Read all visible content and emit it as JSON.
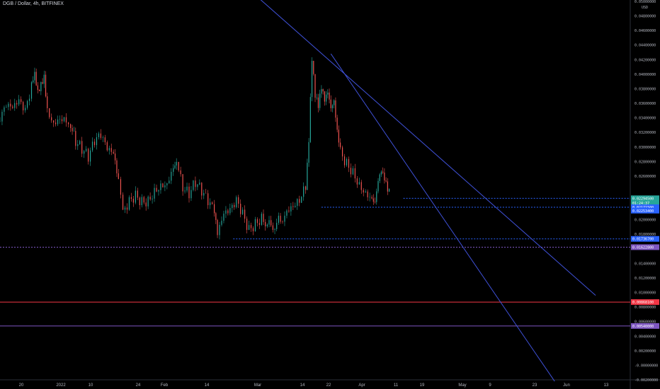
{
  "header": {
    "title": "DGB / Dollar, 4h, BITFINEX"
  },
  "colors": {
    "background": "#000000",
    "up": "#26a69a",
    "down": "#ef5350",
    "trendline": "#3f51d8",
    "level_blue": "#2962ff",
    "level_purple": "#7e57c2",
    "level_red": "#f23645",
    "axis_text": "#b2b5be"
  },
  "chart_data": {
    "type": "candlestick",
    "title": "DGB / Dollar, 4h, BITFINEX",
    "currency_label": "USD",
    "ylim": [
      -0.002,
      0.05
    ],
    "y_ticks": [
      "0.05000000",
      "0.04800000",
      "0.04600000",
      "0.04400000",
      "0.04200000",
      "0.04000000",
      "0.03800000",
      "0.03600000",
      "0.03400000",
      "0.03200000",
      "0.03000000",
      "0.02800000",
      "0.02600000",
      "0.02200000",
      "0.02000000",
      "0.01800000",
      "0.01400000",
      "0.01200000",
      "0.01000000",
      "0.00800000",
      "0.00600000",
      "0.00400000",
      "0.00200000",
      "-0.00000000",
      "-0.00200000"
    ],
    "x_ticks": [
      "20",
      "2022",
      "10",
      "24",
      "Feb",
      "14",
      "Mar",
      "14",
      "22",
      "Apr",
      "11",
      "19",
      "May",
      "9",
      "23",
      "Jun",
      "13"
    ],
    "price_tags": [
      {
        "label": "0.02294500",
        "value": 0.022945,
        "color": "#26a69a"
      },
      {
        "label": "01:24:37",
        "value": 0.0223,
        "color": "#26a69a"
      },
      {
        "label": "0.02171500",
        "value": 0.021715,
        "color": "#2962ff"
      },
      {
        "label": "0.02253400",
        "value": 0.02125,
        "color": "#2962ff"
      },
      {
        "label": "0.01736700",
        "value": 0.017367,
        "color": "#2962ff"
      },
      {
        "label": "0.01622800",
        "value": 0.016228,
        "color": "#7e57c2"
      },
      {
        "label": "0.00868100",
        "value": 0.008681,
        "color": "#f23645"
      },
      {
        "label": "0.00540000",
        "value": 0.0054,
        "color": "#7e57c2"
      }
    ],
    "horizontal_levels": [
      {
        "value": 0.022945,
        "style": "dotted",
        "color": "#2962ff",
        "from": "Apr 19"
      },
      {
        "value": 0.021715,
        "style": "dotted",
        "color": "#2962ff",
        "from": "Mar 22"
      },
      {
        "value": 0.017367,
        "style": "dotted",
        "color": "#2962ff",
        "from": "Feb 28"
      },
      {
        "value": 0.016228,
        "style": "dotted",
        "color": "#7e57c2",
        "from": "Dec 15"
      },
      {
        "value": 0.008681,
        "style": "solid",
        "color": "#f23645",
        "from": "Dec 15"
      },
      {
        "value": 0.0054,
        "style": "solid",
        "color": "#7e57c2",
        "from": "Dec 15"
      }
    ],
    "trendlines": [
      {
        "from": {
          "t": 0.41,
          "v": 0.0505
        },
        "to": {
          "t": 0.945,
          "v": 0.0096
        }
      },
      {
        "from": {
          "t": 0.525,
          "v": 0.0428
        },
        "to": {
          "t": 0.88,
          "v": -0.0022
        }
      }
    ],
    "price_path": [
      [
        0.0,
        0.0335
      ],
      [
        0.01,
        0.0352
      ],
      [
        0.02,
        0.0348
      ],
      [
        0.03,
        0.0358
      ],
      [
        0.04,
        0.0345
      ],
      [
        0.05,
        0.038
      ],
      [
        0.055,
        0.0395
      ],
      [
        0.06,
        0.0372
      ],
      [
        0.065,
        0.0385
      ],
      [
        0.07,
        0.0398
      ],
      [
        0.075,
        0.0355
      ],
      [
        0.085,
        0.0338
      ],
      [
        0.095,
        0.0345
      ],
      [
        0.105,
        0.0342
      ],
      [
        0.112,
        0.0335
      ],
      [
        0.12,
        0.031
      ],
      [
        0.13,
        0.0298
      ],
      [
        0.14,
        0.0285
      ],
      [
        0.15,
        0.0305
      ],
      [
        0.16,
        0.0312
      ],
      [
        0.17,
        0.0292
      ],
      [
        0.18,
        0.0285
      ],
      [
        0.188,
        0.0248
      ],
      [
        0.195,
        0.0205
      ],
      [
        0.205,
        0.0222
      ],
      [
        0.215,
        0.0232
      ],
      [
        0.225,
        0.0225
      ],
      [
        0.235,
        0.0228
      ],
      [
        0.245,
        0.0243
      ],
      [
        0.255,
        0.0252
      ],
      [
        0.265,
        0.0255
      ],
      [
        0.275,
        0.0278
      ],
      [
        0.28,
        0.0288
      ],
      [
        0.29,
        0.0248
      ],
      [
        0.3,
        0.0238
      ],
      [
        0.31,
        0.0252
      ],
      [
        0.32,
        0.0238
      ],
      [
        0.33,
        0.0222
      ],
      [
        0.34,
        0.0208
      ],
      [
        0.345,
        0.0175
      ],
      [
        0.355,
        0.0202
      ],
      [
        0.365,
        0.0208
      ],
      [
        0.375,
        0.0222
      ],
      [
        0.385,
        0.0205
      ],
      [
        0.395,
        0.0185
      ],
      [
        0.405,
        0.0195
      ],
      [
        0.415,
        0.0205
      ],
      [
        0.43,
        0.0192
      ],
      [
        0.445,
        0.02
      ],
      [
        0.455,
        0.0218
      ],
      [
        0.465,
        0.0225
      ],
      [
        0.475,
        0.0232
      ],
      [
        0.485,
        0.025
      ],
      [
        0.49,
        0.0315
      ],
      [
        0.495,
        0.0425
      ],
      [
        0.5,
        0.0372
      ],
      [
        0.505,
        0.0355
      ],
      [
        0.51,
        0.0378
      ],
      [
        0.515,
        0.0358
      ],
      [
        0.52,
        0.0368
      ],
      [
        0.525,
        0.0345
      ],
      [
        0.53,
        0.0355
      ],
      [
        0.535,
        0.0315
      ],
      [
        0.54,
        0.0292
      ],
      [
        0.55,
        0.0278
      ],
      [
        0.56,
        0.0268
      ],
      [
        0.57,
        0.0252
      ],
      [
        0.58,
        0.0242
      ],
      [
        0.59,
        0.0235
      ],
      [
        0.595,
        0.0232
      ],
      [
        0.6,
        0.0262
      ],
      [
        0.605,
        0.0275
      ],
      [
        0.61,
        0.0262
      ],
      [
        0.615,
        0.0245
      ],
      [
        0.62,
        0.0235
      ]
    ]
  }
}
